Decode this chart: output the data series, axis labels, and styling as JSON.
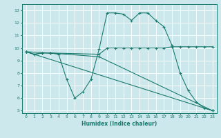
{
  "title": "",
  "xlabel": "Humidex (Indice chaleur)",
  "bg_color": "#cce8ec",
  "line_color": "#1a7a6e",
  "grid_color": "#ffffff",
  "xlim": [
    -0.5,
    23.5
  ],
  "ylim": [
    4.8,
    13.5
  ],
  "xticks": [
    0,
    1,
    2,
    3,
    4,
    5,
    6,
    7,
    8,
    9,
    10,
    11,
    12,
    13,
    14,
    15,
    16,
    17,
    18,
    19,
    20,
    21,
    22,
    23
  ],
  "yticks": [
    5,
    6,
    7,
    8,
    9,
    10,
    11,
    12,
    13
  ],
  "line1_x": [
    0,
    1,
    2,
    3,
    4,
    5,
    6,
    7,
    8,
    9,
    10,
    11,
    12,
    13,
    14,
    15,
    16,
    17,
    18,
    19,
    20,
    21,
    22,
    23
  ],
  "line1_y": [
    9.7,
    9.5,
    9.6,
    9.6,
    9.5,
    7.5,
    6.0,
    6.5,
    7.5,
    9.9,
    12.8,
    12.8,
    12.7,
    12.2,
    12.8,
    12.8,
    12.2,
    11.7,
    10.2,
    8.0,
    6.6,
    5.7,
    5.2,
    5.0
  ],
  "line2_x": [
    0,
    1,
    2,
    3,
    9,
    10,
    11,
    12,
    13,
    14,
    15,
    16,
    17,
    18,
    19,
    20,
    21,
    22,
    23
  ],
  "line2_y": [
    9.7,
    9.5,
    9.6,
    9.6,
    9.5,
    10.0,
    10.0,
    10.0,
    10.0,
    10.0,
    10.0,
    10.0,
    10.0,
    10.1,
    10.1,
    10.1,
    10.1,
    10.1,
    10.1
  ],
  "line3_x": [
    0,
    23
  ],
  "line3_y": [
    9.7,
    5.0
  ],
  "line4_x": [
    0,
    3,
    9,
    23
  ],
  "line4_y": [
    9.7,
    9.6,
    9.3,
    5.0
  ]
}
